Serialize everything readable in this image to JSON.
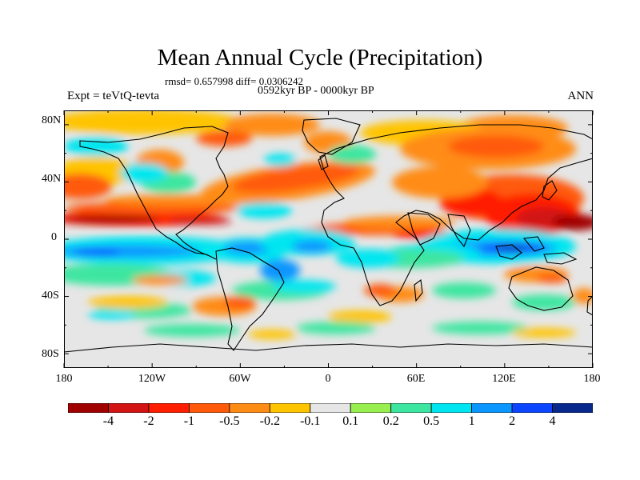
{
  "title": "Mean Annual Cycle (Precipitation)",
  "stats_line": "rmsd= 0.657998 diff= 0.0306242",
  "period_label": "0592kyr BP - 0000kyr BP",
  "experiment_label": "Expt = teVtQ-tevta",
  "season_label": "ANN",
  "chart_data": {
    "type": "heatmap",
    "projection": "cylindrical-equidistant world map",
    "x_ticks": [
      "180",
      "120W",
      "60W",
      "0",
      "60E",
      "120E",
      "180"
    ],
    "y_ticks": [
      "80N",
      "40N",
      "0",
      "40S",
      "80S"
    ],
    "xlim": [
      -180,
      180
    ],
    "ylim": [
      -90,
      90
    ],
    "grid": false,
    "legend": "bottom",
    "colorbar": {
      "labels": [
        "-4",
        "-2",
        "-1",
        "-0.5",
        "-0.2",
        "-0.1",
        "0.1",
        "0.2",
        "0.5",
        "1",
        "2",
        "4"
      ],
      "colors": [
        "#a00000",
        "#d21414",
        "#ff1e00",
        "#ff5a0a",
        "#ff8c14",
        "#ffc400",
        "#e6e6e6",
        "#98f050",
        "#3ce6a0",
        "#00e6f0",
        "#0a96ff",
        "#0a46ff",
        "#08288c"
      ]
    }
  }
}
